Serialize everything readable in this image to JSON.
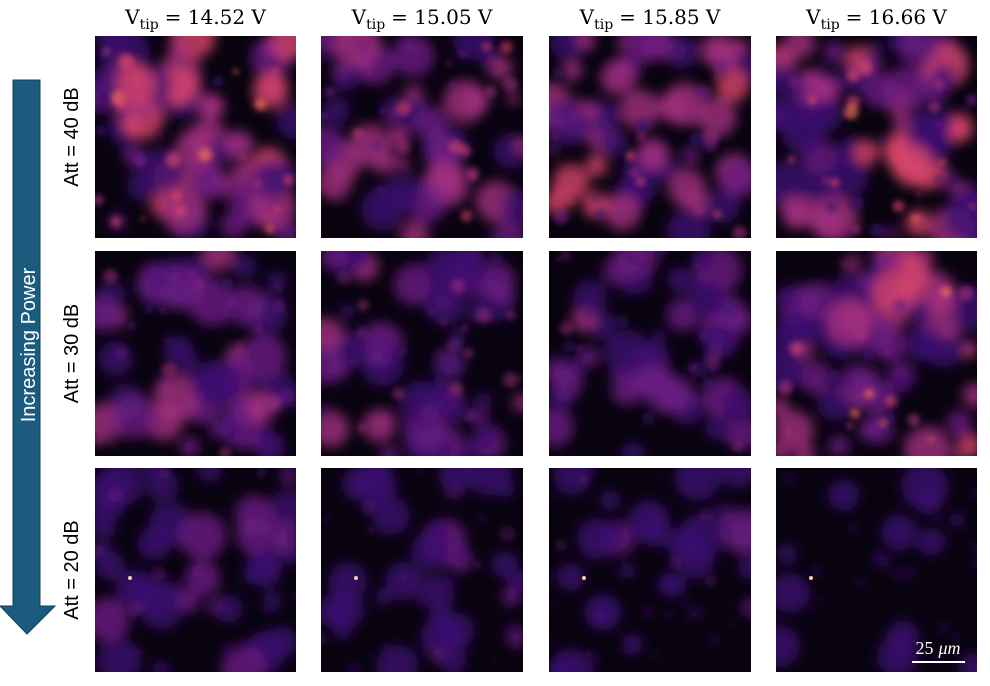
{
  "columns": [
    {
      "symbol": "V",
      "subscript": "tip",
      "value": "= 14.52 V"
    },
    {
      "symbol": "V",
      "subscript": "tip",
      "value": "= 15.05 V"
    },
    {
      "symbol": "V",
      "subscript": "tip",
      "value": "= 15.85 V"
    },
    {
      "symbol": "V",
      "subscript": "tip",
      "value": "= 16.66 V"
    }
  ],
  "rows": [
    "Att = 40 dB",
    "Att = 30 dB",
    "Att = 20 dB"
  ],
  "arrow_label": "Increasing Power",
  "scale_bar": {
    "value": "25",
    "unit": "μm"
  }
}
